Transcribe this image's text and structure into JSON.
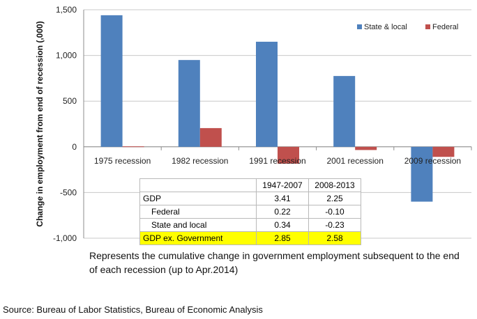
{
  "chart_data": {
    "type": "bar",
    "categories": [
      "1975 recession",
      "1982 recession",
      "1991 recession",
      "2001 recession",
      "2009 recession"
    ],
    "series": [
      {
        "name": "State & local",
        "color": "#4f81bd",
        "values": [
          1440,
          950,
          1150,
          775,
          -600
        ]
      },
      {
        "name": "Federal",
        "color": "#c0504d",
        "values": [
          5,
          205,
          -185,
          -35,
          -110
        ]
      }
    ],
    "ylabel": "Change in employment from end of recession (,000)",
    "ylim": [
      -1000,
      1500
    ],
    "yticks": [
      -1000,
      -500,
      0,
      500,
      1000,
      1500
    ],
    "ytick_labels": [
      "-1,000",
      "-500",
      "0",
      "500",
      "1,000",
      "1,500"
    ],
    "legend_position": "top-right",
    "grid": true
  },
  "table": {
    "headers": [
      "",
      "1947-2007",
      "2008-2013"
    ],
    "rows": [
      {
        "label": "GDP",
        "values": [
          "3.41",
          "2.25"
        ],
        "indent": false,
        "highlight": false
      },
      {
        "label": "Federal",
        "values": [
          "0.22",
          "-0.10"
        ],
        "indent": true,
        "highlight": false
      },
      {
        "label": "State and local",
        "values": [
          "0.34",
          "-0.23"
        ],
        "indent": true,
        "highlight": false
      },
      {
        "label": "GDP ex. Government",
        "values": [
          "2.85",
          "2.58"
        ],
        "indent": false,
        "highlight": true
      }
    ],
    "highlight_color": "#ffff00"
  },
  "note": "Represents the cumulative change in government employment subsequent to the end of each recession  (up to Apr.2014)",
  "source": "Source: Bureau of Labor Statistics, Bureau of Economic Analysis"
}
